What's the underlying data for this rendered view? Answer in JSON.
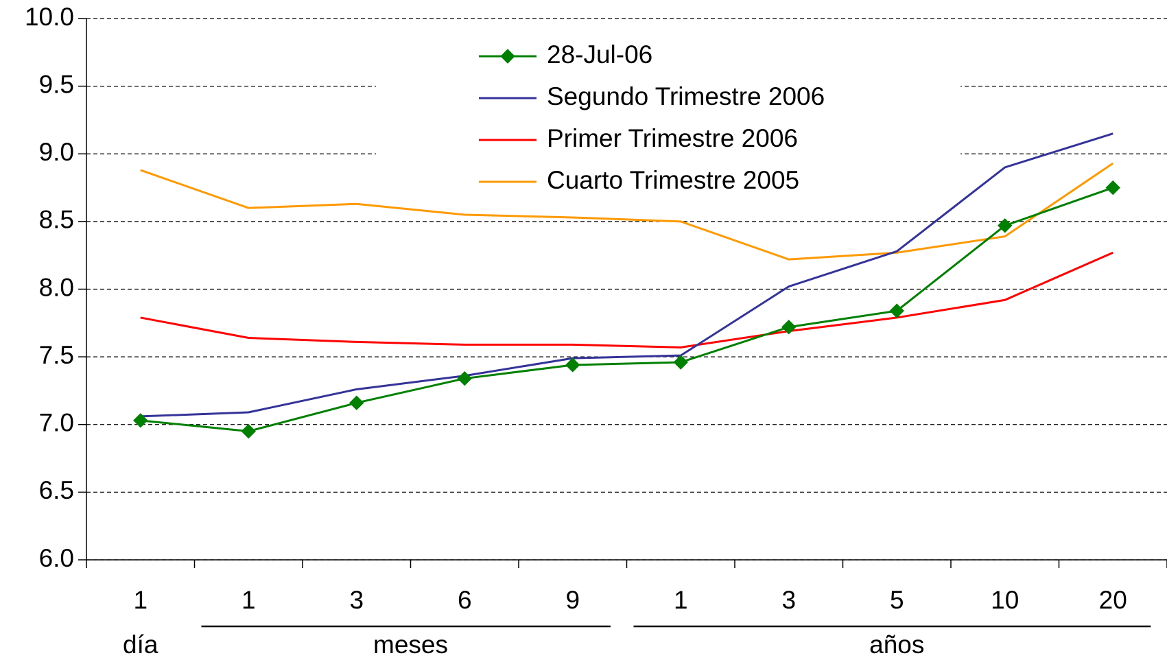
{
  "chart_data": {
    "type": "line",
    "categories": [
      "1",
      "1",
      "3",
      "6",
      "9",
      "1",
      "3",
      "5",
      "10",
      "20"
    ],
    "groups": [
      {
        "label": "día",
        "span": [
          0,
          0
        ]
      },
      {
        "label": "meses",
        "span": [
          1,
          4
        ]
      },
      {
        "label": "años",
        "span": [
          5,
          9
        ]
      }
    ],
    "series": [
      {
        "name": "28-Jul-06",
        "color": "#008000",
        "marker": "diamond",
        "values": [
          7.03,
          6.95,
          7.16,
          7.34,
          7.44,
          7.46,
          7.72,
          7.84,
          8.47,
          8.75
        ]
      },
      {
        "name": "Segundo Trimestre 2006",
        "color": "#333399",
        "values": [
          7.06,
          7.09,
          7.26,
          7.36,
          7.49,
          7.51,
          8.02,
          8.28,
          8.9,
          9.15
        ]
      },
      {
        "name": "Primer Trimestre 2006",
        "color": "#ff0000",
        "values": [
          7.79,
          7.64,
          7.61,
          7.59,
          7.59,
          7.57,
          7.69,
          7.79,
          7.92,
          8.27
        ]
      },
      {
        "name": "Cuarto Trimestre 2005",
        "color": "#ff9900",
        "values": [
          8.88,
          8.6,
          8.63,
          8.55,
          8.53,
          8.5,
          8.22,
          8.27,
          8.39,
          8.93
        ]
      }
    ],
    "ylim": [
      6,
      10
    ],
    "yticks": [
      {
        "value": 6,
        "label": "6.0"
      },
      6.5,
      {
        "value": 7,
        "label": "7.0"
      },
      7.5,
      {
        "value": 8,
        "label": "8.0"
      },
      8.5,
      {
        "value": 9,
        "label": "9.0"
      },
      9.5,
      {
        "value": 10,
        "label": "10.0"
      }
    ],
    "grid": true
  }
}
